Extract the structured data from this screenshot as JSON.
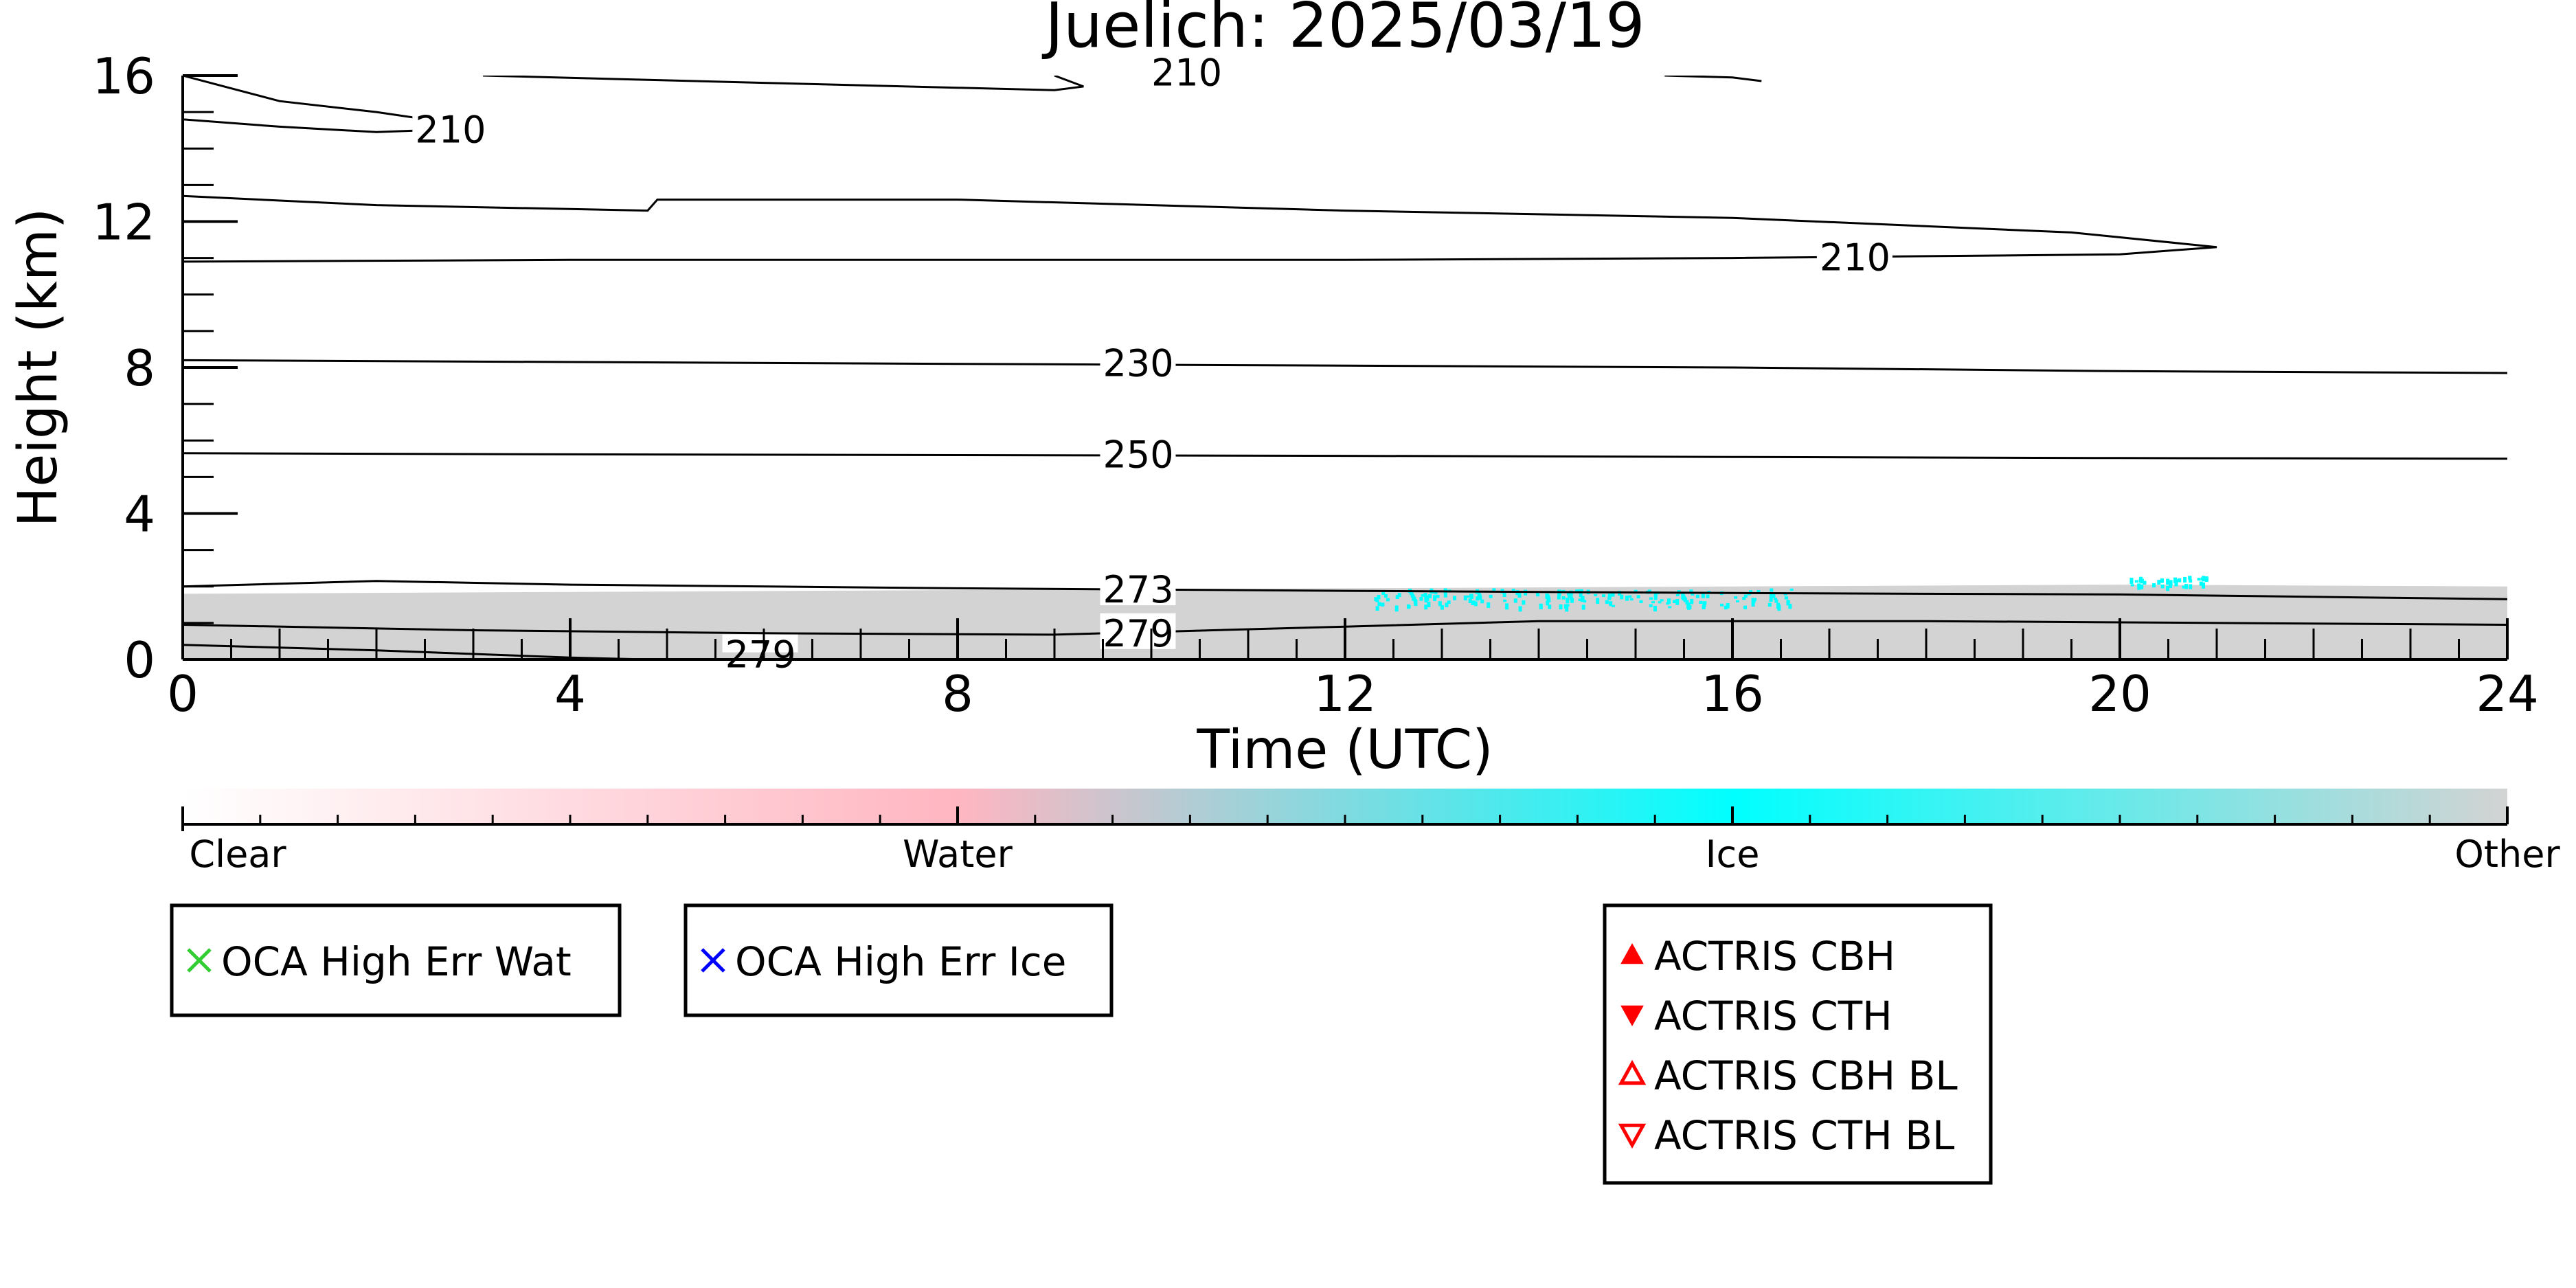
{
  "chart_data": {
    "type": "contour",
    "title": "Juelich: 2025/03/19",
    "xlabel": "Time (UTC)",
    "ylabel": "Height (km)",
    "xlim": [
      0,
      24
    ],
    "ylim": [
      0,
      16
    ],
    "x_ticks": [
      0,
      4,
      8,
      12,
      16,
      20,
      24
    ],
    "y_ticks": [
      0,
      4,
      8,
      12,
      16
    ],
    "cloud_mask": {
      "class": "Other",
      "color": "#d3d3d3",
      "top_km": [
        [
          0,
          1.8
        ],
        [
          4,
          1.85
        ],
        [
          8,
          1.9
        ],
        [
          12,
          1.95
        ],
        [
          16,
          2.0
        ],
        [
          20,
          2.05
        ],
        [
          24,
          2.0
        ]
      ]
    },
    "ice_patches": [
      {
        "x": [
          12.3,
          16.6
        ],
        "y_km": [
          1.45,
          1.95
        ]
      },
      {
        "x": [
          20.1,
          20.9
        ],
        "y_km": [
          2.0,
          2.3
        ]
      }
    ],
    "contours": [
      {
        "label": "210",
        "label_at": [
          2.4,
          14.5
        ],
        "points": [
          [
            0,
            14.8
          ],
          [
            1,
            14.6
          ],
          [
            2,
            14.45
          ],
          [
            3,
            14.55
          ],
          [
            2.9,
            14.65
          ],
          [
            2,
            15.0
          ],
          [
            1,
            15.3
          ],
          [
            0,
            16.0
          ]
        ]
      },
      {
        "label": "210",
        "label_at": [
          16.9,
          11.0
        ],
        "points": [
          [
            0,
            12.7
          ],
          [
            2,
            12.45
          ],
          [
            4.8,
            12.3
          ],
          [
            4.9,
            12.6
          ],
          [
            8,
            12.6
          ],
          [
            12,
            12.3
          ],
          [
            16,
            12.1
          ],
          [
            19.5,
            11.7
          ],
          [
            21,
            11.3
          ],
          [
            20,
            11.1
          ],
          [
            16,
            11.0
          ],
          [
            12,
            10.95
          ],
          [
            4,
            10.95
          ],
          [
            0,
            10.9
          ]
        ]
      },
      {
        "label": "210",
        "label_at": [
          10,
          16.1
        ],
        "points": [
          [
            3.1,
            16.0
          ],
          [
            6,
            15.8
          ],
          [
            9,
            15.6
          ],
          [
            9.3,
            15.7
          ],
          [
            9,
            16.0
          ]
        ]
      },
      {
        "label": "",
        "label_at": [],
        "points": [
          [
            15.3,
            16.0
          ],
          [
            16,
            15.95
          ],
          [
            16.3,
            15.85
          ]
        ]
      },
      {
        "label": "230",
        "label_at": [
          9.5,
          8.1
        ],
        "points": [
          [
            0,
            8.2
          ],
          [
            4,
            8.15
          ],
          [
            8,
            8.1
          ],
          [
            12,
            8.05
          ],
          [
            16,
            8.0
          ],
          [
            20,
            7.9
          ],
          [
            24,
            7.85
          ]
        ]
      },
      {
        "label": "250",
        "label_at": [
          9.5,
          5.6
        ],
        "points": [
          [
            0,
            5.65
          ],
          [
            4,
            5.62
          ],
          [
            8,
            5.6
          ],
          [
            12,
            5.58
          ],
          [
            16,
            5.55
          ],
          [
            20,
            5.52
          ],
          [
            24,
            5.5
          ]
        ]
      },
      {
        "label": "273",
        "label_at": [
          9.5,
          1.9
        ],
        "points": [
          [
            0,
            2.0
          ],
          [
            2,
            2.15
          ],
          [
            4,
            2.05
          ],
          [
            8,
            1.95
          ],
          [
            12,
            1.88
          ],
          [
            16,
            1.82
          ],
          [
            20,
            1.78
          ],
          [
            24,
            1.65
          ]
        ]
      },
      {
        "label": "279",
        "label_at": [
          9.5,
          0.7
        ],
        "points": [
          [
            0,
            0.95
          ],
          [
            3,
            0.8
          ],
          [
            6,
            0.72
          ],
          [
            9,
            0.68
          ],
          [
            12,
            0.9
          ],
          [
            14,
            1.05
          ],
          [
            18,
            1.05
          ],
          [
            24,
            0.95
          ]
        ]
      },
      {
        "label": "279",
        "label_at": [
          5.6,
          0.12
        ],
        "points": [
          [
            0,
            0.4
          ],
          [
            2,
            0.25
          ],
          [
            4,
            0.05
          ],
          [
            4.8,
            0.0
          ]
        ]
      }
    ],
    "colorbar": {
      "classes": [
        "Clear",
        "Water",
        "Ice",
        "Other"
      ],
      "colors": [
        "#ffffff",
        "#ffb6c1",
        "#00ffff",
        "#d3d3d3"
      ]
    },
    "legend_boxes": [
      {
        "items": [
          {
            "label": "OCA High Err Wat",
            "marker": "x",
            "color": "#32cd32"
          }
        ]
      },
      {
        "items": [
          {
            "label": "OCA High Err Ice",
            "marker": "x",
            "color": "#0000ff"
          }
        ]
      },
      {
        "items": [
          {
            "label": "ACTRIS CBH",
            "marker": "triangle-up-filled",
            "color": "#ff0000"
          },
          {
            "label": "ACTRIS CTH",
            "marker": "triangle-down-filled",
            "color": "#ff0000"
          },
          {
            "label": "ACTRIS CBH BL",
            "marker": "triangle-up-open",
            "color": "#ff0000"
          },
          {
            "label": "ACTRIS CTH BL",
            "marker": "triangle-down-open",
            "color": "#ff0000"
          }
        ]
      }
    ]
  }
}
